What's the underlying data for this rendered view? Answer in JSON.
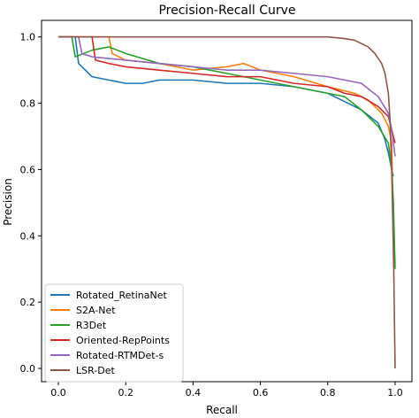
{
  "chart_data": {
    "type": "line",
    "title": "Precision-Recall Curve",
    "xlabel": "Recall",
    "ylabel": "Precision",
    "xlim": [
      -0.05,
      1.05
    ],
    "ylim": [
      -0.04,
      1.05
    ],
    "xticks": [
      "0.0",
      "0.2",
      "0.4",
      "0.6",
      "0.8",
      "1.0"
    ],
    "yticks": [
      "0.0",
      "0.2",
      "0.4",
      "0.6",
      "0.8",
      "1.0"
    ],
    "grid": false,
    "legend_position": "lower-left",
    "series": [
      {
        "name": "Rotated_RetinaNet",
        "color": "#1f77b4",
        "x": [
          0.0,
          0.05,
          0.06,
          0.1,
          0.15,
          0.2,
          0.25,
          0.3,
          0.4,
          0.5,
          0.6,
          0.7,
          0.8,
          0.9,
          0.95,
          0.97,
          0.98,
          0.99,
          0.995
        ],
        "y": [
          1.0,
          1.0,
          0.92,
          0.88,
          0.87,
          0.86,
          0.86,
          0.87,
          0.87,
          0.86,
          0.86,
          0.85,
          0.83,
          0.78,
          0.74,
          0.69,
          0.65,
          0.6,
          0.58
        ]
      },
      {
        "name": "S2A-Net",
        "color": "#ff7f0e",
        "x": [
          0.0,
          0.15,
          0.16,
          0.2,
          0.3,
          0.4,
          0.5,
          0.55,
          0.6,
          0.7,
          0.8,
          0.88,
          0.92,
          0.96,
          0.98,
          0.99,
          0.995,
          1.0
        ],
        "y": [
          1.0,
          1.0,
          0.95,
          0.93,
          0.92,
          0.9,
          0.91,
          0.92,
          0.9,
          0.88,
          0.85,
          0.83,
          0.81,
          0.77,
          0.73,
          0.68,
          0.4,
          0.32
        ]
      },
      {
        "name": "R3Det",
        "color": "#2ca02c",
        "x": [
          0.0,
          0.04,
          0.05,
          0.1,
          0.15,
          0.2,
          0.3,
          0.4,
          0.5,
          0.6,
          0.7,
          0.8,
          0.85,
          0.9,
          0.95,
          0.98,
          0.99,
          0.995,
          1.0
        ],
        "y": [
          1.0,
          1.0,
          0.94,
          0.96,
          0.97,
          0.95,
          0.92,
          0.91,
          0.89,
          0.87,
          0.85,
          0.83,
          0.82,
          0.78,
          0.73,
          0.68,
          0.6,
          0.5,
          0.3
        ]
      },
      {
        "name": "Oriented-RepPoints",
        "color": "#d62728",
        "x": [
          0.0,
          0.1,
          0.11,
          0.15,
          0.2,
          0.3,
          0.4,
          0.5,
          0.6,
          0.7,
          0.8,
          0.85,
          0.9,
          0.95,
          0.98,
          0.99,
          1.0
        ],
        "y": [
          1.0,
          1.0,
          0.93,
          0.92,
          0.91,
          0.9,
          0.89,
          0.88,
          0.88,
          0.86,
          0.85,
          0.83,
          0.82,
          0.79,
          0.76,
          0.72,
          0.68
        ]
      },
      {
        "name": "Rotated-RTMDet-s",
        "color": "#9467bd",
        "x": [
          0.0,
          0.06,
          0.07,
          0.1,
          0.2,
          0.3,
          0.4,
          0.5,
          0.6,
          0.7,
          0.8,
          0.85,
          0.9,
          0.95,
          0.98,
          0.99,
          1.0
        ],
        "y": [
          1.0,
          1.0,
          0.95,
          0.94,
          0.93,
          0.92,
          0.91,
          0.9,
          0.9,
          0.89,
          0.88,
          0.87,
          0.86,
          0.82,
          0.77,
          0.72,
          0.64
        ]
      },
      {
        "name": "LSR-Det",
        "color": "#8c564b",
        "x": [
          0.0,
          0.5,
          0.8,
          0.85,
          0.88,
          0.9,
          0.92,
          0.94,
          0.96,
          0.97,
          0.98,
          0.985,
          0.99,
          0.993,
          0.996,
          0.998,
          1.0
        ],
        "y": [
          1.0,
          1.0,
          1.0,
          0.995,
          0.99,
          0.98,
          0.97,
          0.95,
          0.92,
          0.89,
          0.83,
          0.75,
          0.6,
          0.45,
          0.3,
          0.15,
          0.0
        ]
      }
    ]
  }
}
